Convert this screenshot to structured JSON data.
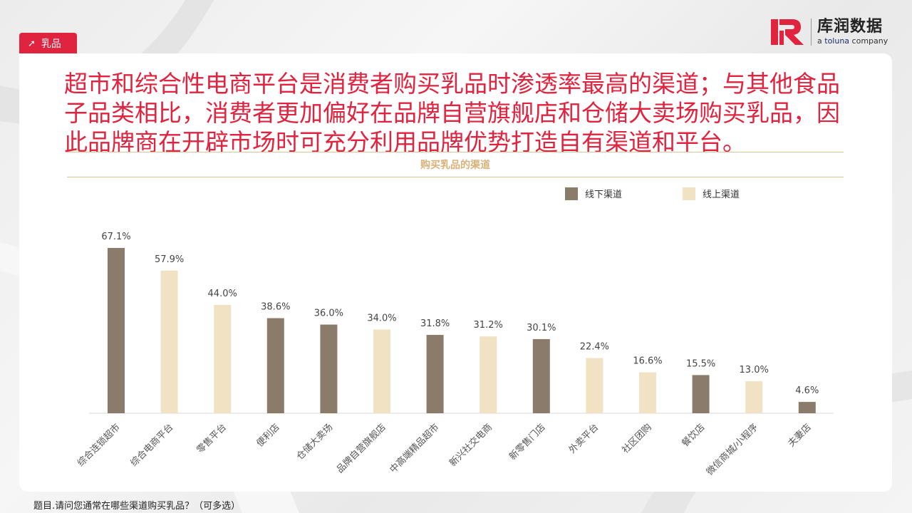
{
  "tag": {
    "label": "乳品"
  },
  "logo": {
    "brand_cn": "库润数据",
    "brand_en_prefix": "a ",
    "brand_en_brand": "toluna",
    "brand_en_suffix": " company"
  },
  "headline": "超市和综合性电商平台是消费者购买乳品时渗透率最高的渠道；与其他食品子品类相比，消费者更加偏好在品牌自营旗舰店和仓储大卖场购买乳品，因此品牌商在开辟市场时可充分利用品牌优势打造自有渠道和平台。",
  "footnote": "题目.请问您通常在哪些渠道购买乳品？（可多选）",
  "colors": {
    "offline": "#8a7b6b",
    "online": "#f2e2c4",
    "accent": "#e0233e",
    "subtitle": "#d9b27a"
  },
  "chart_data": {
    "type": "bar",
    "title": "购买乳品的渠道",
    "categories": [
      "综合连锁超市",
      "综合电商平台",
      "零售平台",
      "便利店",
      "仓储大卖场",
      "品牌自营旗舰店",
      "中高端精品超市",
      "新兴社交电商",
      "新零售门店",
      "外卖平台",
      "社区团购",
      "餐饮店",
      "微信商城/小程序",
      "夫妻店"
    ],
    "values": [
      67.1,
      57.9,
      44.0,
      38.6,
      36.0,
      34.0,
      31.8,
      31.2,
      30.1,
      22.4,
      16.6,
      15.5,
      13.0,
      4.6
    ],
    "labels": [
      "67.1%",
      "57.9%",
      "44.0%",
      "38.6%",
      "36.0%",
      "34.0%",
      "31.8%",
      "31.2%",
      "30.1%",
      "22.4%",
      "16.6%",
      "15.5%",
      "13.0%",
      "4.6%"
    ],
    "channel": [
      "线下渠道",
      "线上渠道",
      "线上渠道",
      "线下渠道",
      "线下渠道",
      "线上渠道",
      "线下渠道",
      "线上渠道",
      "线下渠道",
      "线上渠道",
      "线上渠道",
      "线下渠道",
      "线上渠道",
      "线下渠道"
    ],
    "legend": [
      "线下渠道",
      "线上渠道"
    ],
    "legend_position": "top-right",
    "ylim": [
      0,
      70
    ],
    "grid": false
  }
}
